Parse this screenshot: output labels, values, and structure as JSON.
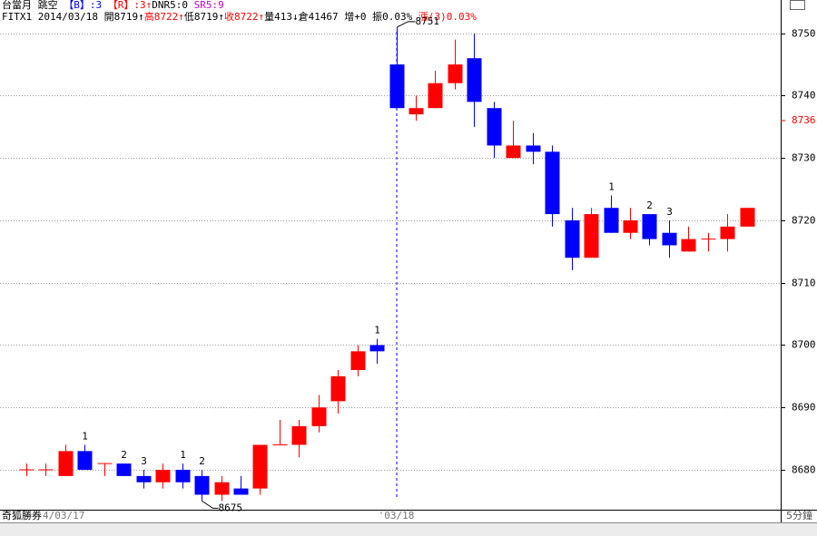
{
  "chart_data": {
    "type": "candlestick",
    "header": [
      [
        {
          "text": "台當月 跳空 ",
          "color": "#000000"
        },
        {
          "text": "【B】:3",
          "color": "#0000ff"
        },
        {
          "text": " 【R】:3↑",
          "color": "#ff0000"
        },
        {
          "text": "DNR5:0 ",
          "color": "#000000"
        },
        {
          "text": "SR5:9",
          "color": "#cc00cc"
        }
      ],
      [
        {
          "text": "FITX1 2014/03/18 開8719↑",
          "color": "#000000"
        },
        {
          "text": "高8722↑",
          "color": "#ff0000"
        },
        {
          "text": "低8719↑",
          "color": "#000000"
        },
        {
          "text": "收8722↑",
          "color": "#ff0000"
        },
        {
          "text": "量413↓倉41467 增+0 振0.03% ",
          "color": "#000000"
        },
        {
          "text": "漲(3)0.03%",
          "color": "#ff0000"
        }
      ]
    ],
    "categories": [
      "4/03/17",
      null,
      null,
      null,
      null,
      null,
      null,
      null,
      null,
      null,
      null,
      null,
      null,
      null,
      null,
      null,
      null,
      null,
      null,
      "'03/18",
      null,
      null,
      null,
      null,
      null,
      null,
      null,
      null,
      null,
      null,
      null,
      null,
      null,
      null,
      null,
      null,
      null,
      null
    ],
    "open": [
      8680,
      8680,
      8679,
      8683,
      8681,
      8681,
      8679,
      8678,
      8680,
      8679,
      8676,
      8677,
      8677,
      8684,
      8684,
      8687,
      8691,
      8696,
      8700,
      8745,
      8737,
      8738,
      8742,
      8746,
      8738,
      8730,
      8732,
      8731,
      8720,
      8714,
      8722,
      8718,
      8721,
      8718,
      8715,
      8717,
      8717,
      8719
    ],
    "high": [
      8681,
      8681,
      8684,
      8684,
      8681,
      8681,
      8680,
      8681,
      8681,
      8680,
      8679,
      8679,
      8684,
      8688,
      8688,
      8692,
      8696,
      8700,
      8701,
      8751,
      8740,
      8744,
      8749,
      8750,
      8739,
      8736,
      8734,
      8732,
      8722,
      8722,
      8724,
      8722,
      8721,
      8720,
      8719,
      8718,
      8721,
      8722
    ],
    "low": [
      8679,
      8679,
      8679,
      8680,
      8679,
      8679,
      8677,
      8677,
      8677,
      8675,
      8675,
      8676,
      8676,
      8684,
      8682,
      8686,
      8689,
      8695,
      8697,
      8738,
      8736,
      8738,
      8741,
      8735,
      8730,
      8730,
      8729,
      8719,
      8712,
      8714,
      8718,
      8717,
      8716,
      8714,
      8715,
      8715,
      8715,
      8719
    ],
    "close": [
      8680,
      8680,
      8683,
      8680,
      8681,
      8679,
      8678,
      8680,
      8678,
      8676,
      8678,
      8676,
      8684,
      8684,
      8687,
      8690,
      8695,
      8699,
      8699,
      8738,
      8738,
      8742,
      8745,
      8739,
      8732,
      8732,
      8731,
      8721,
      8714,
      8721,
      8718,
      8720,
      8717,
      8716,
      8717,
      8717,
      8719,
      8722
    ],
    "candle_labels": [
      null,
      null,
      null,
      "1",
      null,
      "2",
      "3",
      null,
      "1",
      "2",
      null,
      null,
      null,
      null,
      null,
      null,
      null,
      null,
      "1",
      null,
      null,
      null,
      null,
      null,
      null,
      null,
      null,
      null,
      null,
      null,
      "1",
      null,
      "2",
      "3",
      null,
      null,
      null,
      null
    ],
    "up_color": "#ff0000",
    "down_color": "#0000ff",
    "ylim": [
      8673.6,
      8753.3
    ],
    "yticks": [
      8680,
      8690,
      8700,
      8710,
      8720,
      8730,
      8740,
      8750
    ],
    "price_marker": 8736,
    "price_marker_color": "#ff0000",
    "brand": "奇狐勝券",
    "period": "5分鐘",
    "grid": true
  }
}
